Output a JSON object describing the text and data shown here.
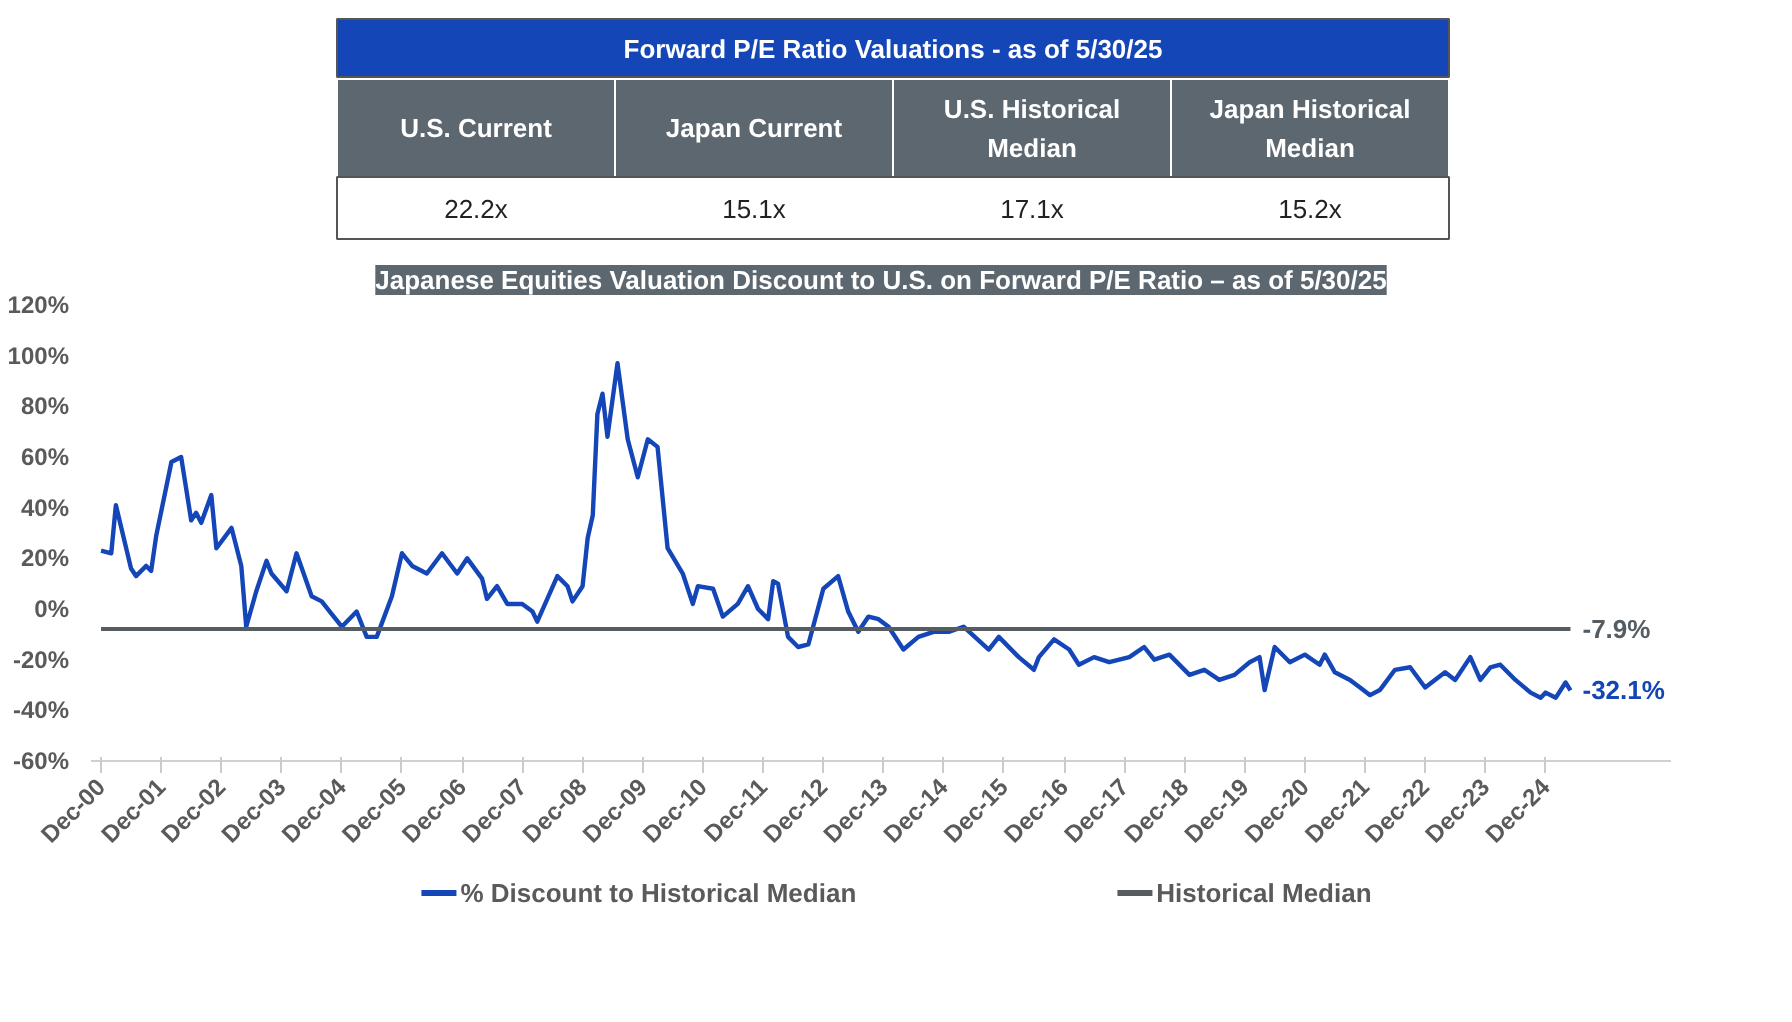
{
  "chart_data": [
    {
      "type": "other",
      "title": "Forward P/E Ratio Valuations - as of 5/30/25",
      "categories": [
        "U.S. Current",
        "Japan Current",
        "U.S. Historical Median",
        "Japan Historical Median"
      ],
      "values": [
        22.2,
        15.1,
        17.1,
        15.2
      ],
      "value_labels": [
        "22.2x",
        "15.1x",
        "17.1x",
        "15.2x"
      ]
    },
    {
      "type": "line",
      "title": "Japanese Equities Valuation Discount to U.S. on Forward P/E Ratio – as of 5/30/25",
      "legend": "bottom",
      "grid": false,
      "xlim": [
        "2000-10",
        "2027-01"
      ],
      "ylim": [
        -60,
        120
      ],
      "yticks": [
        {
          "value": -60,
          "label": "-60%"
        },
        {
          "value": -40,
          "label": "-40%"
        },
        {
          "value": -20,
          "label": "-20%"
        },
        {
          "value": 0,
          "label": "0%"
        },
        {
          "value": 20,
          "label": "20%"
        },
        {
          "value": 40,
          "label": "40%"
        },
        {
          "value": 60,
          "label": "60%"
        },
        {
          "value": 80,
          "label": "80%"
        },
        {
          "value": 100,
          "label": "100%"
        },
        {
          "value": 120,
          "label": "120%"
        }
      ],
      "xticks": [
        {
          "value": "2000-12",
          "label": "Dec-00"
        },
        {
          "value": "2001-12",
          "label": "Dec-01"
        },
        {
          "value": "2002-12",
          "label": "Dec-02"
        },
        {
          "value": "2003-12",
          "label": "Dec-03"
        },
        {
          "value": "2004-12",
          "label": "Dec-04"
        },
        {
          "value": "2005-12",
          "label": "Dec-05"
        },
        {
          "value": "2006-12",
          "label": "Dec-06"
        },
        {
          "value": "2007-12",
          "label": "Dec-07"
        },
        {
          "value": "2008-12",
          "label": "Dec-08"
        },
        {
          "value": "2009-12",
          "label": "Dec-09"
        },
        {
          "value": "2010-12",
          "label": "Dec-10"
        },
        {
          "value": "2011-12",
          "label": "Dec-11"
        },
        {
          "value": "2012-12",
          "label": "Dec-12"
        },
        {
          "value": "2013-12",
          "label": "Dec-13"
        },
        {
          "value": "2014-12",
          "label": "Dec-14"
        },
        {
          "value": "2015-12",
          "label": "Dec-15"
        },
        {
          "value": "2016-12",
          "label": "Dec-16"
        },
        {
          "value": "2017-12",
          "label": "Dec-17"
        },
        {
          "value": "2018-12",
          "label": "Dec-18"
        },
        {
          "value": "2019-12",
          "label": "Dec-19"
        },
        {
          "value": "2020-12",
          "label": "Dec-20"
        },
        {
          "value": "2021-12",
          "label": "Dec-21"
        },
        {
          "value": "2022-12",
          "label": "Dec-22"
        },
        {
          "value": "2023-12",
          "label": "Dec-23"
        },
        {
          "value": "2024-12",
          "label": "Dec-24"
        }
      ],
      "series": [
        {
          "name": "% Discount to Historical Median",
          "color": "#1446b8",
          "x": [
            "2000-12",
            "2001-02",
            "2001-03",
            "2001-06",
            "2001-07",
            "2001-09",
            "2001-10",
            "2001-11",
            "2002-02",
            "2002-04",
            "2002-06",
            "2002-07",
            "2002-08",
            "2002-10",
            "2002-11",
            "2003-02",
            "2003-04",
            "2003-05",
            "2003-07",
            "2003-09",
            "2003-10",
            "2004-01",
            "2004-03",
            "2004-06",
            "2004-08",
            "2004-10",
            "2004-12",
            "2005-03",
            "2005-05",
            "2005-07",
            "2005-10",
            "2005-12",
            "2006-02",
            "2006-05",
            "2006-08",
            "2006-11",
            "2007-01",
            "2007-04",
            "2007-05",
            "2007-07",
            "2007-09",
            "2007-12",
            "2008-02",
            "2008-03",
            "2008-05",
            "2008-07",
            "2008-09",
            "2008-10",
            "2008-12",
            "2009-01",
            "2009-02",
            "2009-03",
            "2009-04",
            "2009-05",
            "2009-07",
            "2009-09",
            "2009-11",
            "2010-01",
            "2010-03",
            "2010-05",
            "2010-08",
            "2010-10",
            "2010-11",
            "2011-02",
            "2011-04",
            "2011-07",
            "2011-09",
            "2011-11",
            "2012-01",
            "2012-02",
            "2012-03",
            "2012-05",
            "2012-07",
            "2012-09",
            "2012-12",
            "2013-03",
            "2013-05",
            "2013-07",
            "2013-09",
            "2013-11",
            "2014-01",
            "2014-04",
            "2014-07",
            "2014-10",
            "2015-01",
            "2015-04",
            "2015-09",
            "2015-11",
            "2016-03",
            "2016-06",
            "2016-07",
            "2016-10",
            "2017-01",
            "2017-03",
            "2017-06",
            "2017-09",
            "2018-01",
            "2018-04",
            "2018-06",
            "2018-09",
            "2019-01",
            "2019-04",
            "2019-07",
            "2019-10",
            "2020-01",
            "2020-03",
            "2020-04",
            "2020-06",
            "2020-09",
            "2020-12",
            "2021-03",
            "2021-04",
            "2021-06",
            "2021-09",
            "2021-11",
            "2022-01",
            "2022-03",
            "2022-06",
            "2022-09",
            "2022-12",
            "2023-04",
            "2023-06",
            "2023-09",
            "2023-11",
            "2024-01",
            "2024-03",
            "2024-06",
            "2024-09",
            "2024-11",
            "2024-12",
            "2025-02",
            "2025-04",
            "2025-05"
          ],
          "values": [
            23,
            22,
            41,
            16,
            13,
            17,
            15,
            29,
            58,
            60,
            35,
            38,
            34,
            45,
            24,
            32,
            17,
            -7,
            7,
            19,
            14,
            7,
            22,
            5,
            3,
            -2,
            -7,
            -1,
            -11,
            -11,
            5,
            22,
            17,
            14,
            22,
            14,
            20,
            12,
            4,
            9,
            2,
            2,
            -1,
            -5,
            4,
            13,
            9,
            3,
            9,
            28,
            37,
            77,
            85,
            68,
            97,
            67,
            52,
            67,
            64,
            24,
            14,
            2,
            9,
            8,
            -3,
            2,
            9,
            0,
            -4,
            11,
            10,
            -11,
            -15,
            -14,
            8,
            13,
            -1,
            -9,
            -3,
            -4,
            -7,
            -16,
            -11,
            -9,
            -9,
            -7,
            -16,
            -11,
            -19,
            -24,
            -19,
            -12,
            -16,
            -22,
            -19,
            -21,
            -19,
            -15,
            -20,
            -18,
            -26,
            -24,
            -28,
            -26,
            -21,
            -19,
            -32,
            -15,
            -21,
            -18,
            -22,
            -18,
            -25,
            -28,
            -31,
            -34,
            -32,
            -24,
            -23,
            -31,
            -25,
            -28,
            -19,
            -28,
            -23,
            -22,
            -28,
            -33,
            -35,
            -33,
            -35,
            -29,
            -32.1
          ]
        },
        {
          "name": "Historical Median",
          "color": "#555d63",
          "x": [
            "2000-12",
            "2025-05"
          ],
          "values": [
            -7.9,
            -7.9
          ]
        }
      ],
      "annotations": [
        {
          "text": "-7.9%",
          "x": "2025-05",
          "y": -7.9
        },
        {
          "text": "-32.1%",
          "x": "2025-05",
          "y": -32.1
        }
      ]
    }
  ]
}
